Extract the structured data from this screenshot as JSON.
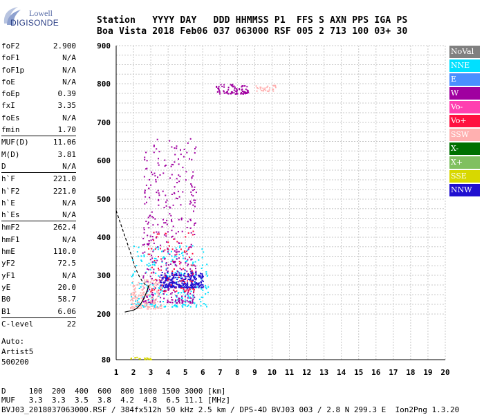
{
  "logo": {
    "line1": "Lowell",
    "line2": "DIGISONDE"
  },
  "header": {
    "row1": "Station   YYYY DAY   DDD HHMMSS P1  FFS S AXN PPS IGA PS",
    "row2": "Boa Vista 2018 Feb06 037 063000 RSF 005 2 713 100 03+ 30"
  },
  "params": {
    "group1": [
      {
        "label": "foF2",
        "value": "2.900"
      },
      {
        "label": "foF1",
        "value": "N/A"
      },
      {
        "label": "foF1p",
        "value": "N/A"
      },
      {
        "label": "foE",
        "value": "N/A"
      },
      {
        "label": "foEp",
        "value": "0.39"
      },
      {
        "label": "fxI",
        "value": "3.35"
      },
      {
        "label": "foEs",
        "value": "N/A"
      },
      {
        "label": "fmin",
        "value": "1.70"
      }
    ],
    "group2": [
      {
        "label": "MUF(D)",
        "value": "11.06"
      },
      {
        "label": "M(D)",
        "value": "3.81"
      },
      {
        "label": "D",
        "value": "N/A"
      }
    ],
    "group3": [
      {
        "label": "h`F",
        "value": "221.0"
      },
      {
        "label": "h`F2",
        "value": "221.0"
      },
      {
        "label": "h`E",
        "value": "N/A"
      },
      {
        "label": "h`Es",
        "value": "N/A"
      }
    ],
    "group4": [
      {
        "label": "hmF2",
        "value": "262.4"
      },
      {
        "label": "hmF1",
        "value": "N/A"
      },
      {
        "label": "hmE",
        "value": "110.0"
      },
      {
        "label": "yF2",
        "value": "72.5"
      },
      {
        "label": "yF1",
        "value": "N/A"
      },
      {
        "label": "yE",
        "value": "20.0"
      },
      {
        "label": "B0",
        "value": "58.7"
      },
      {
        "label": "B1",
        "value": "6.06"
      }
    ],
    "group5": [
      {
        "label": "C-level",
        "value": "22"
      }
    ]
  },
  "auto": {
    "line1": "Auto:",
    "line2": "Artist5",
    "line3": "500200"
  },
  "legend": [
    {
      "label": "NoVal",
      "color": "#808080"
    },
    {
      "label": "NNE",
      "color": "#00e0ff"
    },
    {
      "label": "E",
      "color": "#4a8fff"
    },
    {
      "label": "W",
      "color": "#a000a0"
    },
    {
      "label": "Vo-",
      "color": "#ff40b0"
    },
    {
      "label": "Vo+",
      "color": "#ff1040"
    },
    {
      "label": "SSW",
      "color": "#ffb0b0"
    },
    {
      "label": "X-",
      "color": "#007000"
    },
    {
      "label": "X+",
      "color": "#80c060"
    },
    {
      "label": "SSE",
      "color": "#d8d800"
    },
    {
      "label": "NNW",
      "color": "#2010d0"
    }
  ],
  "bottom": {
    "row1": "D     100  200  400  600  800 1000 1500 3000 [km]",
    "row2": "MUF   3.3  3.3  3.5  3.8  4.2  4.8  6.5 11.1 [MHz]",
    "row3": "BVJ03_2018037063000.RSF / 384fx512h 50 kHz 2.5 km / DPS-4D BVJ03 003 / 2.8 N 299.3 E  Ion2Png 1.3.20"
  },
  "chart_data": {
    "type": "scatter",
    "x_ticks": [
      1,
      2,
      3,
      4,
      5,
      6,
      7,
      8,
      9,
      10,
      11,
      12,
      13,
      14,
      15,
      16,
      17,
      18,
      19,
      20
    ],
    "y_ticks": [
      80,
      200,
      300,
      400,
      500,
      600,
      700,
      800,
      900
    ],
    "xlim": [
      1,
      20
    ],
    "ylim_display": [
      80,
      900
    ],
    "grid": true,
    "legend_position": "right",
    "trace_hmf2": {
      "x": [
        1.5,
        2.0,
        2.2,
        2.4,
        2.6,
        2.8,
        2.9
      ],
      "y": [
        205,
        210,
        215,
        225,
        240,
        262,
        275
      ]
    },
    "virtual_height_curve": {
      "x": [
        1.0,
        1.3,
        1.6,
        1.9,
        2.1,
        2.3,
        2.5,
        2.7,
        2.9
      ],
      "y": [
        470,
        430,
        390,
        350,
        320,
        300,
        285,
        275,
        270
      ]
    },
    "echo_clusters": [
      {
        "direction": "NNE",
        "x_range": [
          1.8,
          6.3
        ],
        "y_range": [
          220,
          380
        ],
        "density": 260
      },
      {
        "direction": "W",
        "x_range": [
          2.5,
          5.6
        ],
        "y_range": [
          230,
          660
        ],
        "density": 420
      },
      {
        "direction": "NNW",
        "x_range": [
          3.5,
          6.0
        ],
        "y_range": [
          270,
          310
        ],
        "density": 260
      },
      {
        "direction": "SSW",
        "x_range": [
          1.8,
          3.6
        ],
        "y_range": [
          215,
          290
        ],
        "density": 160
      },
      {
        "direction": "Vo+",
        "x_range": [
          2.8,
          5.5
        ],
        "y_range": [
          260,
          420
        ],
        "density": 90
      },
      {
        "direction": "W",
        "x_range": [
          6.7,
          8.6
        ],
        "y_range": [
          775,
          800
        ],
        "density": 90
      },
      {
        "direction": "SSW",
        "x_range": [
          9.0,
          10.2
        ],
        "y_range": [
          782,
          798
        ],
        "density": 30
      },
      {
        "direction": "SSE",
        "x_range": [
          1.8,
          3.0
        ],
        "y_range": [
          82,
          88
        ],
        "density": 20
      }
    ]
  }
}
